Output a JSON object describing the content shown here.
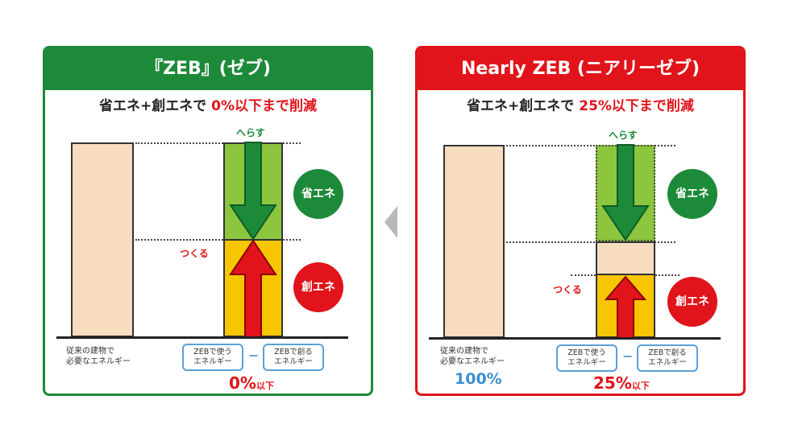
{
  "panels": {
    "zeb": {
      "title": "『ZEB』(ゼブ)",
      "subtitle_prefix": "省エネ+創エネで",
      "subtitle_highlight": "0%以下まで削減",
      "reduce_label": "へらす",
      "create_label": "つくる",
      "save_circle": "省エネ",
      "create_circle": "創エネ",
      "conventional_label": [
        "従来の建物で",
        "必要なエネルギー"
      ],
      "use_box": [
        "ZEBで使う",
        "エネルギー"
      ],
      "minus": "−",
      "make_box": [
        "ZEBで創る",
        "エネルギー"
      ],
      "result_value": "0",
      "result_unit": "%",
      "result_suffix": "以下"
    },
    "nzeb": {
      "title": "Nearly ZEB (ニアリーゼブ)",
      "subtitle_prefix": "省エネ+創エネで",
      "subtitle_highlight": "25%以下まで削減",
      "reduce_label": "へらす",
      "create_label": "つくる",
      "save_circle": "省エネ",
      "create_circle": "創エネ",
      "conventional_label": [
        "従来の建物で",
        "必要なエネルギー"
      ],
      "conventional_pct": "100%",
      "use_box": [
        "ZEBで使う",
        "エネルギー"
      ],
      "minus": "−",
      "make_box": [
        "ZEBで創る",
        "エネルギー"
      ],
      "result_value": "25",
      "result_unit": "%",
      "result_suffix": "以下"
    }
  },
  "colors": {
    "zeb_green": "#1d8a3a",
    "nzeb_red": "#e0141a",
    "save_green": "#8cc63f",
    "create_yellow": "#f7c600",
    "beige": "#f8dcc0",
    "accent_blue": "#3a8ed0"
  },
  "icons": {
    "down_arrow": "down-arrow-icon",
    "up_arrow": "up-arrow-icon",
    "separator": "chevron-left-icon"
  }
}
